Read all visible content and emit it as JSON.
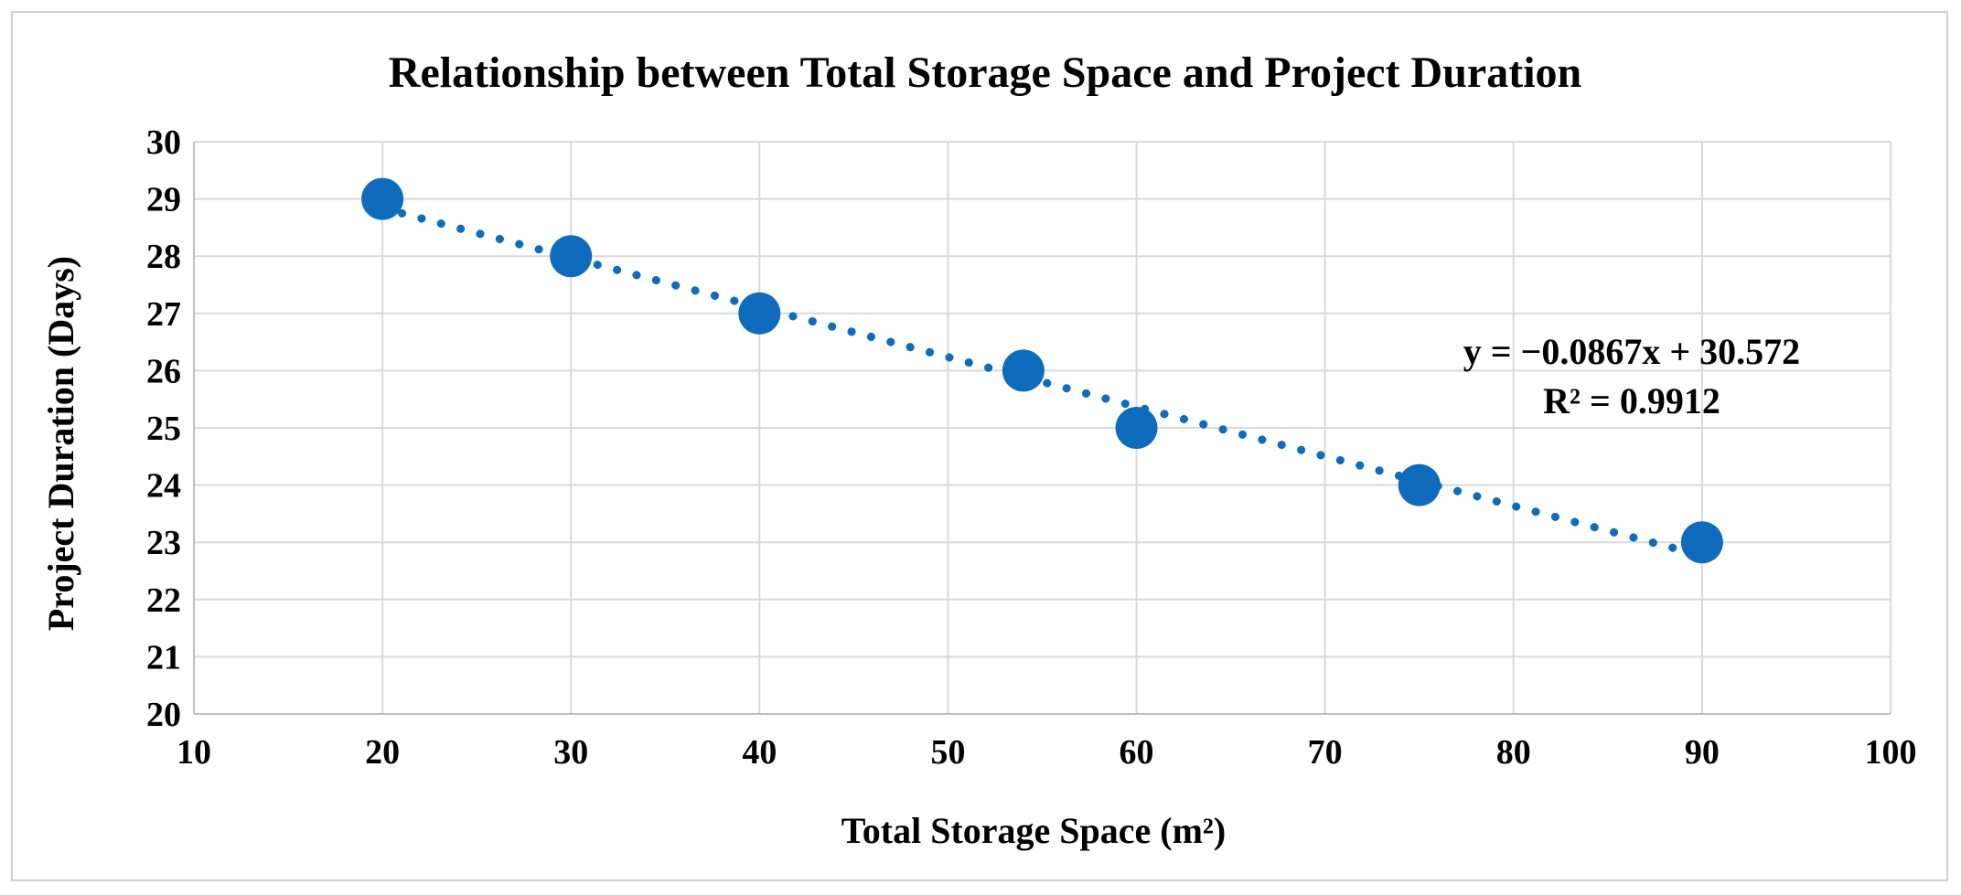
{
  "chart_data": {
    "type": "scatter",
    "title": "Relationship between Total Storage Space and Project Duration",
    "xlabel": "Total Storage Space (m²)",
    "ylabel": "Project Duration (Days)",
    "xlim": [
      10,
      100
    ],
    "ylim": [
      20,
      30
    ],
    "x_ticks": [
      10,
      20,
      30,
      40,
      50,
      60,
      70,
      80,
      90,
      100
    ],
    "y_ticks": [
      20,
      21,
      22,
      23,
      24,
      25,
      26,
      27,
      28,
      29,
      30
    ],
    "grid": true,
    "series": [
      {
        "name": "Project Duration",
        "color": "#0f6cbd",
        "x": [
          20,
          30,
          40,
          54,
          60,
          75,
          90
        ],
        "y": [
          29,
          28,
          27,
          26,
          25,
          24,
          23
        ]
      }
    ],
    "trendline": {
      "type": "linear",
      "style": "dotted",
      "color": "#0f6cbd",
      "slope": -0.0867,
      "intercept": 30.572,
      "x_range": [
        20,
        90
      ],
      "equation": "y = −0.0867x + 30.572",
      "r_squared": "R² = 0.9912"
    }
  }
}
